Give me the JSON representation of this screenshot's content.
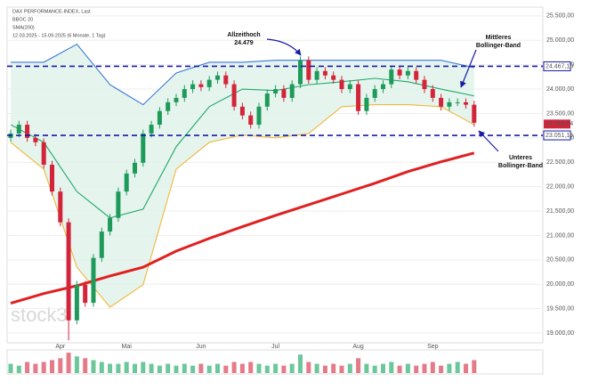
{
  "chart_data": {
    "type": "candlestick",
    "legend_lines": [
      "DAX PERFORMANCE-INDEX, Last",
      "BBOC 20",
      "SMA(200)",
      "12.03.2025 - 15.09.2025 (6 Monate, 1 Tag)"
    ],
    "watermark": "stock3",
    "categories": [
      null,
      null,
      null,
      null,
      null,
      null,
      "Apr",
      null,
      null,
      null,
      null,
      null,
      null,
      null,
      "Mai",
      null,
      null,
      null,
      null,
      null,
      null,
      null,
      null,
      "Jun",
      null,
      null,
      null,
      null,
      null,
      null,
      null,
      null,
      "Jul",
      null,
      null,
      null,
      null,
      null,
      null,
      null,
      null,
      null,
      "Aug",
      null,
      null,
      null,
      null,
      null,
      null,
      null,
      null,
      "Sep",
      null,
      null,
      null,
      null,
      null
    ],
    "open": [
      23000,
      23090,
      23270,
      23000,
      22910,
      22450,
      21900,
      21270,
      19260,
      19990,
      19620,
      20540,
      21080,
      21360,
      21900,
      22270,
      22490,
      23090,
      23270,
      23550,
      23730,
      23820,
      24000,
      24100,
      24040,
      24190,
      24280,
      24100,
      23640,
      23460,
      23270,
      23640,
      23910,
      24000,
      23820,
      24100,
      24590,
      24190,
      24370,
      24280,
      24190,
      24000,
      24100,
      23550,
      23820,
      24000,
      24100,
      24400,
      24280,
      24370,
      24190,
      24000,
      23820,
      23640,
      23730,
      23730,
      23680
    ],
    "high": [
      23170,
      23350,
      23350,
      23080,
      22990,
      22530,
      21980,
      21350,
      20070,
      20070,
      20620,
      21160,
      21440,
      21980,
      22350,
      22570,
      23170,
      23350,
      23630,
      23810,
      23900,
      24080,
      24180,
      24180,
      24270,
      24360,
      24360,
      24180,
      23720,
      23540,
      23720,
      23990,
      24080,
      24080,
      24180,
      24670,
      24670,
      24450,
      24450,
      24360,
      24270,
      24180,
      24180,
      23900,
      24080,
      24180,
      24480,
      24480,
      24450,
      24450,
      24270,
      24080,
      23900,
      23810,
      23810,
      23810,
      23760
    ],
    "low": [
      22920,
      23010,
      22920,
      22830,
      22370,
      21820,
      21190,
      18850,
      19180,
      19540,
      19540,
      20460,
      21000,
      21280,
      21820,
      22190,
      22410,
      23010,
      23190,
      23470,
      23650,
      23740,
      23920,
      23960,
      23960,
      24110,
      24020,
      23560,
      23380,
      23190,
      23190,
      23560,
      23830,
      23740,
      23740,
      24020,
      24110,
      24110,
      24200,
      24110,
      23920,
      23920,
      23470,
      23470,
      23740,
      23920,
      24020,
      24200,
      24200,
      24110,
      23920,
      23740,
      23560,
      23560,
      23650,
      23600,
      23230
    ],
    "close": [
      23090,
      23270,
      23000,
      22910,
      22450,
      21900,
      21270,
      19260,
      19990,
      19620,
      20540,
      21080,
      21360,
      21900,
      22270,
      22490,
      23090,
      23270,
      23550,
      23730,
      23820,
      24000,
      24100,
      24040,
      24190,
      24280,
      24100,
      23640,
      23460,
      23270,
      23640,
      23910,
      24000,
      23820,
      24100,
      24590,
      24190,
      24370,
      24280,
      24190,
      24000,
      24100,
      23550,
      23820,
      24000,
      24100,
      24400,
      24280,
      24370,
      24190,
      24000,
      23820,
      23640,
      23730,
      23730,
      23680,
      23310
    ],
    "volume": [
      5,
      4,
      6,
      5,
      6,
      7,
      8,
      11,
      9,
      8,
      7,
      6,
      5,
      5,
      6,
      5,
      6,
      5,
      4,
      5,
      4,
      5,
      4,
      5,
      4,
      5,
      4,
      6,
      5,
      6,
      5,
      4,
      5,
      4,
      5,
      10,
      6,
      5,
      4,
      5,
      4,
      5,
      8,
      5,
      4,
      5,
      6,
      4,
      5,
      4,
      5,
      6,
      4,
      5,
      6,
      5,
      7
    ],
    "volume_ylim": [
      0,
      12
    ],
    "lines": [
      {
        "name": "Upper Bollinger",
        "color": "#3a78d8",
        "x": [
          0,
          4,
          8,
          12,
          16,
          20,
          24,
          28,
          32,
          36,
          40,
          44,
          48,
          52,
          56
        ],
        "values": [
          24550,
          24550,
          24920,
          24090,
          23680,
          24330,
          24550,
          24550,
          24590,
          24590,
          24590,
          24590,
          24590,
          24590,
          24440
        ]
      },
      {
        "name": "Middle Bollinger",
        "color": "#1fa86a",
        "x": [
          0,
          4,
          8,
          12,
          16,
          20,
          24,
          28,
          32,
          36,
          40,
          44,
          48,
          52,
          56
        ],
        "values": [
          23270,
          22910,
          21900,
          21360,
          21540,
          22820,
          23640,
          24000,
          23970,
          24090,
          24150,
          24220,
          24150,
          24000,
          23860
        ]
      },
      {
        "name": "Lower Bollinger",
        "color": "#f0b83a",
        "x": [
          0,
          4,
          8,
          12,
          16,
          20,
          24,
          28,
          32,
          36,
          40,
          44,
          48,
          52,
          56
        ],
        "values": [
          22910,
          22360,
          20350,
          19530,
          19990,
          22360,
          22910,
          23060,
          23000,
          23090,
          23640,
          23680,
          23680,
          23640,
          23270
        ]
      },
      {
        "name": "SMA200",
        "color": "#e02020",
        "x": [
          0,
          4,
          8,
          12,
          16,
          20,
          24,
          28,
          32,
          36,
          40,
          44,
          48,
          52,
          56
        ],
        "values": [
          19610,
          19810,
          19970,
          20170,
          20350,
          20680,
          20940,
          21180,
          21410,
          21630,
          21850,
          22070,
          22310,
          22510,
          22690
        ]
      }
    ],
    "levels": [
      {
        "value": 24467.1,
        "label": "24.467,10"
      },
      {
        "value": 23051.15,
        "label": "23.051,15"
      }
    ],
    "last_price": {
      "value": 23283.64,
      "label": "23.283,64"
    },
    "annotations": [
      {
        "lines": [
          "Allzeithoch",
          "24.479"
        ]
      },
      {
        "lines": [
          "Mittleres",
          "Bollinger-Band"
        ]
      },
      {
        "lines": [
          "Unteres",
          "Bollinger-Band"
        ]
      }
    ],
    "ylim": [
      18800,
      25680
    ],
    "yticks": [
      {
        "value": 19000,
        "label": "19.000,00"
      },
      {
        "value": 19500,
        "label": "19.500,00"
      },
      {
        "value": 20000,
        "label": "20.000,00"
      },
      {
        "value": 20500,
        "label": "20.500,00"
      },
      {
        "value": 21000,
        "label": "21.000,00"
      },
      {
        "value": 21500,
        "label": "21.500,00"
      },
      {
        "value": 22000,
        "label": "22.000,00"
      },
      {
        "value": 22500,
        "label": "22.500,00"
      },
      {
        "value": 23000,
        "label": "23.000,00"
      },
      {
        "value": 23500,
        "label": "23.500,00"
      },
      {
        "value": 24000,
        "label": "24.000,00"
      },
      {
        "value": 24500,
        "label": "24.500,00"
      },
      {
        "value": 25000,
        "label": "25.000,00"
      },
      {
        "value": 25500,
        "label": "25.500,00"
      }
    ],
    "grid": true
  }
}
